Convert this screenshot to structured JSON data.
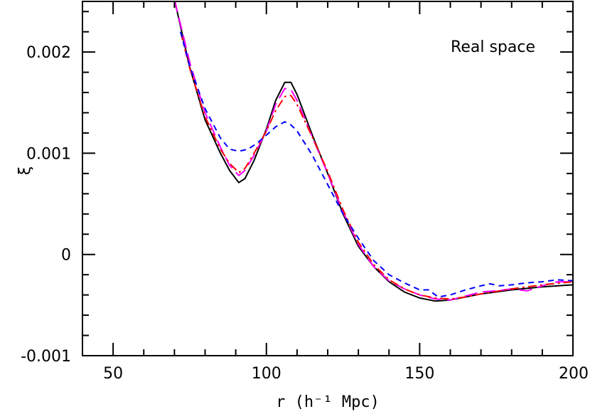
{
  "chart_data": {
    "type": "line",
    "title": "",
    "annotation": "Real space",
    "xlabel": "r (h⁻¹ Mpc)",
    "ylabel": "ξ",
    "xlim": [
      40,
      200
    ],
    "ylim": [
      -0.001,
      0.0025
    ],
    "x_ticks_major": [
      50,
      100,
      150,
      200
    ],
    "x_tick_labels": [
      "50",
      "100",
      "150",
      "200"
    ],
    "x_ticks_minor_step": 10,
    "y_ticks_major": [
      -0.001,
      0,
      0.001,
      0.002
    ],
    "y_tick_labels": [
      "-0.001",
      "0",
      "0.001",
      "0.002"
    ],
    "y_ticks_minor_step": 0.0002,
    "grid": false,
    "series": [
      {
        "style": "solid",
        "color": "#000000",
        "points": [
          [
            70,
            0.00252
          ],
          [
            75,
            0.00185
          ],
          [
            80,
            0.00133
          ],
          [
            85,
            0.001
          ],
          [
            88,
            0.00083
          ],
          [
            91,
            0.00071
          ],
          [
            93,
            0.00075
          ],
          [
            96,
            0.00093
          ],
          [
            100,
            0.00124
          ],
          [
            103,
            0.00152
          ],
          [
            106,
            0.0017
          ],
          [
            108,
            0.0017
          ],
          [
            110,
            0.00158
          ],
          [
            115,
            0.00118
          ],
          [
            120,
            0.0008
          ],
          [
            125,
            0.0004
          ],
          [
            130,
            8e-05
          ],
          [
            135,
            -0.00012
          ],
          [
            140,
            -0.00027
          ],
          [
            145,
            -0.00037
          ],
          [
            150,
            -0.00043
          ],
          [
            155,
            -0.00046
          ],
          [
            160,
            -0.00045
          ],
          [
            165,
            -0.00042
          ],
          [
            170,
            -0.00039
          ],
          [
            180,
            -0.00035
          ],
          [
            190,
            -0.00032
          ],
          [
            200,
            -0.0003
          ]
        ]
      },
      {
        "style": "long-dash",
        "color": "#ff00ff",
        "points": [
          [
            70,
            0.00252
          ],
          [
            75,
            0.0019
          ],
          [
            80,
            0.0014
          ],
          [
            85,
            0.00106
          ],
          [
            88,
            0.00088
          ],
          [
            91,
            0.00078
          ],
          [
            93,
            0.00083
          ],
          [
            96,
            0.00098
          ],
          [
            100,
            0.00122
          ],
          [
            103,
            0.00148
          ],
          [
            106,
            0.00164
          ],
          [
            108,
            0.00163
          ],
          [
            110,
            0.00152
          ],
          [
            115,
            0.00116
          ],
          [
            120,
            0.0008
          ],
          [
            125,
            0.00042
          ],
          [
            130,
            0.0001
          ],
          [
            135,
            -0.00012
          ],
          [
            140,
            -0.00026
          ],
          [
            145,
            -0.00034
          ],
          [
            150,
            -0.0004
          ],
          [
            155,
            -0.00044
          ],
          [
            160,
            -0.00045
          ],
          [
            165,
            -0.00041
          ],
          [
            170,
            -0.00037
          ],
          [
            175,
            -0.00036
          ],
          [
            180,
            -0.00034
          ],
          [
            185,
            -0.00036
          ],
          [
            190,
            -0.00031
          ],
          [
            195,
            -0.00027
          ],
          [
            200,
            -0.00027
          ]
        ]
      },
      {
        "style": "dash-dot",
        "color": "#ff0000",
        "points": [
          [
            72,
            0.0022
          ],
          [
            75,
            0.00184
          ],
          [
            80,
            0.00136
          ],
          [
            85,
            0.00104
          ],
          [
            88,
            0.0009
          ],
          [
            91,
            0.00081
          ],
          [
            93,
            0.00085
          ],
          [
            96,
            0.001
          ],
          [
            100,
            0.00122
          ],
          [
            103,
            0.00142
          ],
          [
            106,
            0.00156
          ],
          [
            108,
            0.00157
          ],
          [
            110,
            0.00148
          ],
          [
            115,
            0.00116
          ],
          [
            120,
            0.00082
          ],
          [
            125,
            0.00044
          ],
          [
            130,
            0.00012
          ],
          [
            135,
            -0.0001
          ],
          [
            140,
            -0.00025
          ],
          [
            145,
            -0.00034
          ],
          [
            150,
            -0.0004
          ],
          [
            155,
            -0.00043
          ],
          [
            160,
            -0.00044
          ],
          [
            165,
            -0.00042
          ],
          [
            170,
            -0.00039
          ],
          [
            180,
            -0.00034
          ],
          [
            190,
            -0.0003
          ],
          [
            200,
            -0.00027
          ]
        ]
      },
      {
        "style": "short-dash",
        "color": "#0000ff",
        "points": [
          [
            72,
            0.0022
          ],
          [
            75,
            0.00186
          ],
          [
            80,
            0.00144
          ],
          [
            85,
            0.00115
          ],
          [
            88,
            0.00104
          ],
          [
            91,
            0.00102
          ],
          [
            94,
            0.00104
          ],
          [
            97,
            0.0011
          ],
          [
            100,
            0.00118
          ],
          [
            103,
            0.00126
          ],
          [
            106,
            0.00131
          ],
          [
            108,
            0.00128
          ],
          [
            110,
            0.00122
          ],
          [
            115,
            0.00098
          ],
          [
            120,
            0.00069
          ],
          [
            125,
            0.0004
          ],
          [
            130,
            0.00016
          ],
          [
            135,
            -6e-05
          ],
          [
            140,
            -0.0002
          ],
          [
            145,
            -0.00028
          ],
          [
            150,
            -0.00035
          ],
          [
            153,
            -0.00035
          ],
          [
            156,
            -0.00042
          ],
          [
            160,
            -0.0004
          ],
          [
            165,
            -0.00035
          ],
          [
            170,
            -0.00031
          ],
          [
            173,
            -0.00029
          ],
          [
            176,
            -0.00031
          ],
          [
            180,
            -0.0003
          ],
          [
            185,
            -0.00028
          ],
          [
            190,
            -0.00027
          ],
          [
            195,
            -0.00025
          ],
          [
            200,
            -0.00026
          ]
        ]
      }
    ]
  }
}
